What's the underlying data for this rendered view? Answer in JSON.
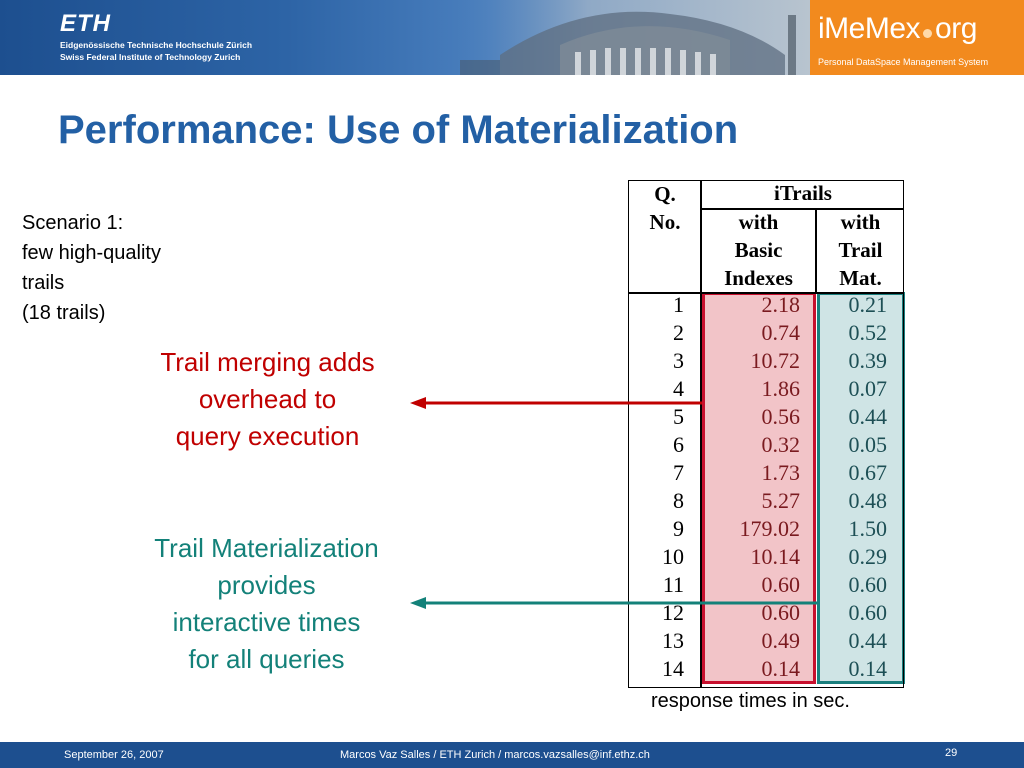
{
  "header": {
    "eth_logo": "ETH",
    "eth_line1": "Eidgenössische Technische Hochschule Zürich",
    "eth_line2": "Swiss Federal Institute of Technology Zurich",
    "imemex_logo_left": "iMeMex",
    "imemex_logo_right": "org",
    "imemex_sub": "Personal DataSpace Management System",
    "colors": {
      "banner": "#1d4f8f",
      "imemex_box": "#f28a1e"
    }
  },
  "slide": {
    "title": "Performance: Use of Materialization",
    "scenario": [
      "Scenario 1:",
      "few high-quality",
      "trails",
      "(18 trails)"
    ],
    "callout_red": [
      "Trail merging adds",
      "overhead to",
      "query execution"
    ],
    "callout_teal": [
      "Trail Materialization",
      "provides",
      "interactive times",
      "for all queries"
    ],
    "caption": "response times in sec."
  },
  "table": {
    "col_q": [
      "Q.",
      "No."
    ],
    "group_header": "iTrails",
    "col_basic": [
      "with",
      "Basic",
      "Indexes"
    ],
    "col_trail": [
      "with",
      "Trail",
      "Mat."
    ],
    "rows": [
      {
        "q": "1",
        "basic": "2.18",
        "trail": "0.21"
      },
      {
        "q": "2",
        "basic": "0.74",
        "trail": "0.52"
      },
      {
        "q": "3",
        "basic": "10.72",
        "trail": "0.39"
      },
      {
        "q": "4",
        "basic": "1.86",
        "trail": "0.07"
      },
      {
        "q": "5",
        "basic": "0.56",
        "trail": "0.44"
      },
      {
        "q": "6",
        "basic": "0.32",
        "trail": "0.05"
      },
      {
        "q": "7",
        "basic": "1.73",
        "trail": "0.67"
      },
      {
        "q": "8",
        "basic": "5.27",
        "trail": "0.48"
      },
      {
        "q": "9",
        "basic": "179.02",
        "trail": "1.50"
      },
      {
        "q": "10",
        "basic": "10.14",
        "trail": "0.29"
      },
      {
        "q": "11",
        "basic": "0.60",
        "trail": "0.60"
      },
      {
        "q": "12",
        "basic": "0.60",
        "trail": "0.60"
      },
      {
        "q": "13",
        "basic": "0.49",
        "trail": "0.44"
      },
      {
        "q": "14",
        "basic": "0.14",
        "trail": "0.14"
      }
    ],
    "colors": {
      "basic_highlight": "#c8102e",
      "trail_highlight": "#1a7f7e"
    }
  },
  "footer": {
    "date": "September 26, 2007",
    "author": "Marcos Vaz Salles / ETH Zurich / marcos.vazsalles@inf.ethz.ch",
    "page": "29"
  }
}
